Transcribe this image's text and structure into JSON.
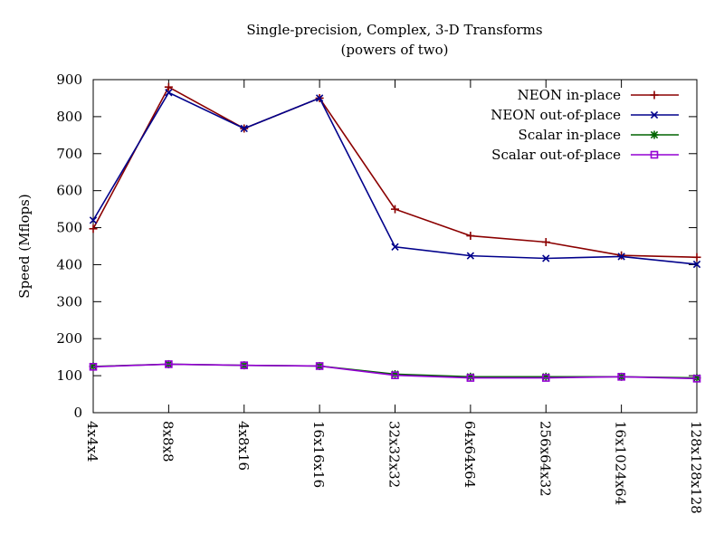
{
  "chart_data": {
    "type": "line",
    "title": "Single-precision, Complex, 3-D Transforms",
    "subtitle": "(powers of two)",
    "xlabel": "",
    "ylabel": "Speed (Mflops)",
    "categories": [
      "4x4x4",
      "8x8x8",
      "4x8x16",
      "16x16x16",
      "32x32x32",
      "64x64x64",
      "256x64x32",
      "16x1024x64",
      "128x128x128"
    ],
    "ylim": [
      0,
      900
    ],
    "yticks": [
      0,
      100,
      200,
      300,
      400,
      500,
      600,
      700,
      800,
      900
    ],
    "grid": false,
    "legend_position": "top-right",
    "series": [
      {
        "name": "NEON in-place",
        "color": "#8b0000",
        "marker": "plus",
        "values": [
          497,
          880,
          768,
          850,
          550,
          478,
          461,
          425,
          420
        ]
      },
      {
        "name": "NEON out-of-place",
        "color": "#00008b",
        "marker": "cross",
        "values": [
          520,
          865,
          768,
          850,
          448,
          424,
          417,
          422,
          401
        ]
      },
      {
        "name": "Scalar in-place",
        "color": "#006400",
        "marker": "star",
        "values": [
          125,
          131,
          128,
          126,
          104,
          97,
          97,
          97,
          94
        ]
      },
      {
        "name": "Scalar out-of-place",
        "color": "#9400d3",
        "marker": "square",
        "values": [
          124,
          131,
          128,
          126,
          101,
          94,
          94,
          97,
          92
        ]
      }
    ]
  }
}
